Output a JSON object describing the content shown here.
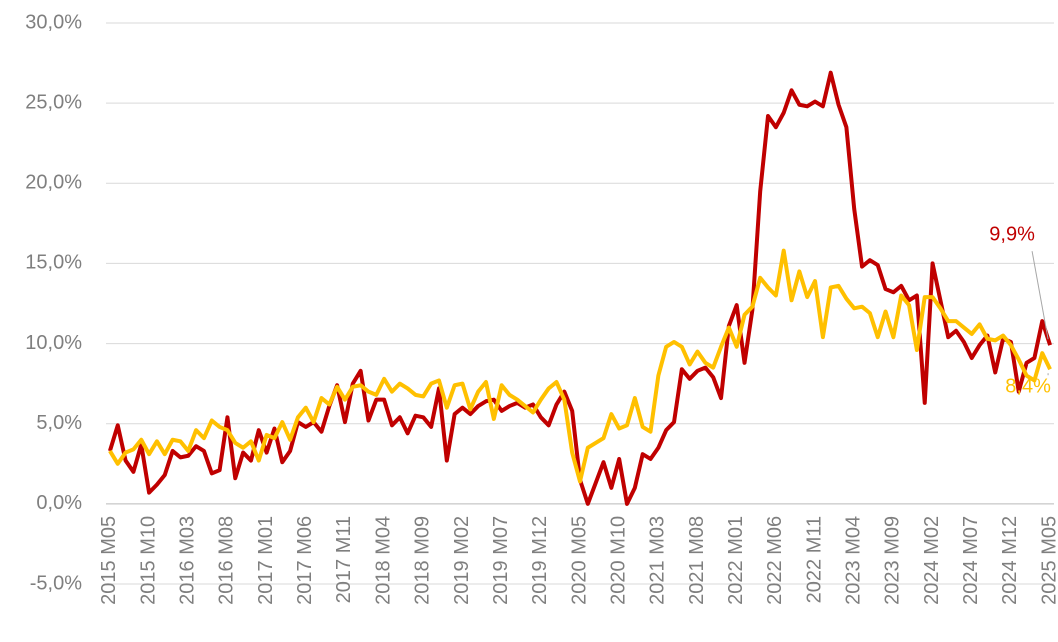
{
  "chart_data": {
    "type": "line",
    "categories": [
      "2015 M05",
      null,
      null,
      null,
      null,
      "2015 M10",
      null,
      null,
      null,
      null,
      "2016 M03",
      null,
      null,
      null,
      null,
      "2016 M08",
      null,
      null,
      null,
      null,
      "2017 M01",
      null,
      null,
      null,
      null,
      "2017 M06",
      null,
      null,
      null,
      null,
      "2017 M11",
      null,
      null,
      null,
      null,
      "2018 M04",
      null,
      null,
      null,
      null,
      "2018 M09",
      null,
      null,
      null,
      null,
      "2019 M02",
      null,
      null,
      null,
      null,
      "2019 M07",
      null,
      null,
      null,
      null,
      "2019 M12",
      null,
      null,
      null,
      null,
      "2020 M05",
      null,
      null,
      null,
      null,
      "2020 M10",
      null,
      null,
      null,
      null,
      "2021 M03",
      null,
      null,
      null,
      null,
      "2021 M08",
      null,
      null,
      null,
      null,
      "2022 M01",
      null,
      null,
      null,
      null,
      "2022 M06",
      null,
      null,
      null,
      null,
      "2022 M11",
      null,
      null,
      null,
      null,
      "2023 M04",
      null,
      null,
      null,
      null,
      "2023 M09",
      null,
      null,
      null,
      null,
      "2024 M02",
      null,
      null,
      null,
      null,
      "2024 M07",
      null,
      null,
      null,
      null,
      "2024 M12",
      null,
      null,
      null,
      null,
      "2025 M05"
    ],
    "series": [
      {
        "color": "#c00000",
        "values": [
          3.3,
          4.9,
          2.7,
          2.0,
          3.7,
          0.7,
          1.2,
          1.8,
          3.3,
          2.9,
          3.0,
          3.6,
          3.3,
          1.9,
          2.1,
          5.4,
          1.6,
          3.2,
          2.7,
          4.6,
          3.2,
          4.7,
          2.6,
          3.3,
          5.1,
          4.8,
          5.1,
          4.5,
          6.1,
          7.4,
          5.1,
          7.5,
          8.3,
          5.2,
          6.5,
          6.5,
          4.9,
          5.4,
          4.4,
          5.5,
          5.4,
          4.8,
          7.2,
          2.7,
          5.6,
          6.0,
          5.6,
          6.1,
          6.4,
          6.5,
          5.8,
          6.1,
          6.3,
          6.0,
          6.2,
          5.4,
          4.9,
          6.2,
          7.0,
          5.8,
          1.5,
          0.0,
          1.3,
          2.6,
          1.0,
          2.8,
          0.0,
          1.0,
          3.1,
          2.8,
          3.5,
          4.6,
          5.1,
          8.4,
          7.8,
          8.3,
          8.5,
          7.9,
          6.6,
          11.1,
          12.4,
          8.8,
          12.1,
          19.5,
          24.2,
          23.5,
          24.4,
          25.8,
          24.9,
          24.8,
          25.1,
          24.8,
          26.9,
          24.9,
          23.5,
          18.4,
          14.8,
          15.2,
          14.9,
          13.4,
          13.2,
          13.6,
          12.7,
          13.0,
          6.3,
          15.0,
          12.7,
          10.4,
          10.8,
          10.1,
          9.1,
          9.9,
          10.5,
          8.2,
          10.3,
          10.1,
          7.0,
          8.8,
          9.1,
          11.4,
          9.9
        ],
        "value_labels": [
          null,
          null,
          null,
          null,
          null,
          null,
          null,
          null,
          null,
          null,
          null,
          null,
          null,
          null,
          null,
          null,
          null,
          null,
          null,
          null,
          null,
          null,
          null,
          null,
          null,
          null,
          null,
          null,
          null,
          null,
          null,
          null,
          null,
          null,
          null,
          null,
          null,
          null,
          null,
          null,
          null,
          null,
          null,
          null,
          null,
          null,
          null,
          null,
          null,
          null,
          null,
          null,
          null,
          null,
          null,
          null,
          null,
          null,
          null,
          null,
          null,
          null,
          null,
          null,
          null,
          null,
          null,
          null,
          null,
          null,
          null,
          null,
          null,
          null,
          null,
          null,
          null,
          null,
          null,
          null,
          null,
          null,
          null,
          null,
          null,
          null,
          null,
          null,
          null,
          null,
          null,
          null,
          null,
          null,
          null,
          null,
          null,
          null,
          null,
          null,
          null,
          null,
          null,
          null,
          null,
          null,
          null,
          null,
          null,
          null,
          null,
          null,
          null,
          null,
          null,
          null,
          null,
          null,
          null,
          null,
          "9,9%"
        ]
      },
      {
        "color": "#ffc000",
        "values": [
          3.3,
          2.5,
          3.2,
          3.4,
          4.0,
          3.1,
          3.9,
          3.1,
          4.0,
          3.9,
          3.3,
          4.6,
          4.1,
          5.2,
          4.8,
          4.6,
          3.8,
          3.5,
          3.9,
          2.7,
          4.3,
          4.1,
          5.1,
          4.0,
          5.4,
          6.0,
          5.1,
          6.6,
          6.2,
          7.3,
          6.5,
          7.3,
          7.4,
          7.0,
          6.8,
          7.8,
          7.0,
          7.5,
          7.2,
          6.8,
          6.7,
          7.5,
          7.7,
          6.0,
          7.4,
          7.5,
          5.9,
          7.0,
          7.6,
          5.3,
          7.4,
          6.8,
          6.5,
          6.1,
          5.7,
          6.5,
          7.2,
          7.6,
          6.5,
          3.2,
          1.4,
          3.5,
          3.8,
          4.1,
          5.6,
          4.7,
          4.9,
          6.6,
          4.8,
          4.5,
          8.0,
          9.8,
          10.1,
          9.8,
          8.7,
          9.5,
          8.8,
          8.5,
          9.8,
          11.0,
          9.8,
          11.8,
          12.3,
          14.1,
          13.5,
          13.0,
          15.8,
          12.7,
          14.5,
          12.9,
          13.9,
          10.4,
          13.5,
          13.6,
          12.8,
          12.2,
          12.3,
          11.9,
          10.4,
          12.0,
          10.4,
          13.0,
          12.4,
          9.6,
          12.9,
          12.9,
          12.2,
          11.4,
          11.4,
          11.0,
          10.6,
          11.2,
          10.3,
          10.2,
          10.5,
          9.9,
          9.0,
          8.0,
          7.7,
          9.4,
          8.4
        ],
        "value_labels": [
          null,
          null,
          null,
          null,
          null,
          null,
          null,
          null,
          null,
          null,
          null,
          null,
          null,
          null,
          null,
          null,
          null,
          null,
          null,
          null,
          null,
          null,
          null,
          null,
          null,
          null,
          null,
          null,
          null,
          null,
          null,
          null,
          null,
          null,
          null,
          null,
          null,
          null,
          null,
          null,
          null,
          null,
          null,
          null,
          null,
          null,
          null,
          null,
          null,
          null,
          null,
          null,
          null,
          null,
          null,
          null,
          null,
          null,
          null,
          null,
          null,
          null,
          null,
          null,
          null,
          null,
          null,
          null,
          null,
          null,
          null,
          null,
          null,
          null,
          null,
          null,
          null,
          null,
          null,
          null,
          null,
          null,
          null,
          null,
          null,
          null,
          null,
          null,
          null,
          null,
          null,
          null,
          null,
          null,
          null,
          null,
          null,
          null,
          null,
          null,
          null,
          null,
          null,
          null,
          null,
          null,
          null,
          null,
          null,
          null,
          null,
          null,
          null,
          null,
          null,
          null,
          null,
          null,
          null,
          null,
          "8,4%"
        ]
      }
    ],
    "ylim": [
      -5,
      30
    ],
    "yticks": [
      {
        "value": -5,
        "label": "-5,0%"
      },
      {
        "value": 0,
        "label": "0,0%"
      },
      {
        "value": 5,
        "label": "5,0%"
      },
      {
        "value": 10,
        "label": "10,0%"
      },
      {
        "value": 15,
        "label": "15,0%"
      },
      {
        "value": 20,
        "label": "20,0%"
      },
      {
        "value": 25,
        "label": "25,0%"
      },
      {
        "value": 30,
        "label": "30,0%"
      }
    ],
    "grid": true
  }
}
